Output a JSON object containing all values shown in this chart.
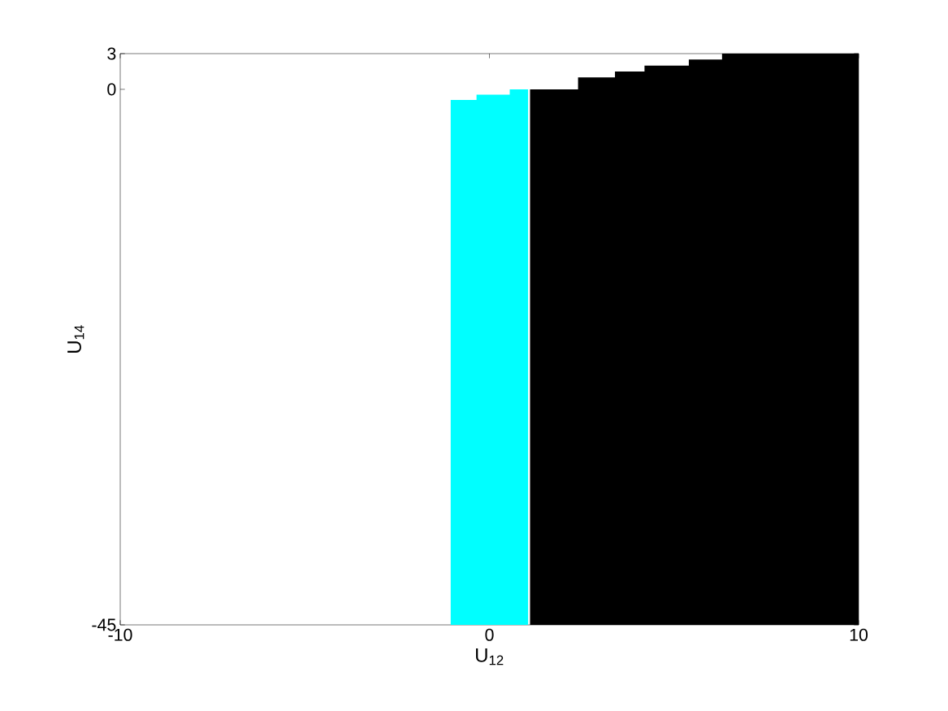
{
  "chart_data": {
    "type": "area",
    "xlabel": "U$_{12}$",
    "ylabel": "U$_{14}$",
    "xlim": [
      -10,
      10
    ],
    "ylim": [
      -45,
      3
    ],
    "xticks": [
      -10,
      0,
      10
    ],
    "yticks": [
      -45,
      0,
      3
    ],
    "grid": false,
    "series": [
      {
        "color": "#00ffff",
        "x": [
          -1.05,
          -1.05,
          -0.35,
          -0.35,
          0.55,
          0.55,
          1.05,
          1.05
        ],
        "values": [
          -45,
          -0.9,
          -0.9,
          -0.45,
          -0.45,
          0,
          0,
          -45
        ]
      },
      {
        "color": "#000000",
        "x": [
          1.1,
          1.1,
          2.4,
          2.4,
          3.4,
          3.4,
          4.2,
          4.2,
          5.4,
          5.4,
          6.3,
          6.3,
          10,
          10
        ],
        "values": [
          -45,
          0,
          0,
          1,
          1,
          1.5,
          1.5,
          2,
          2,
          2.5,
          2.5,
          3,
          3,
          -45
        ]
      }
    ]
  }
}
